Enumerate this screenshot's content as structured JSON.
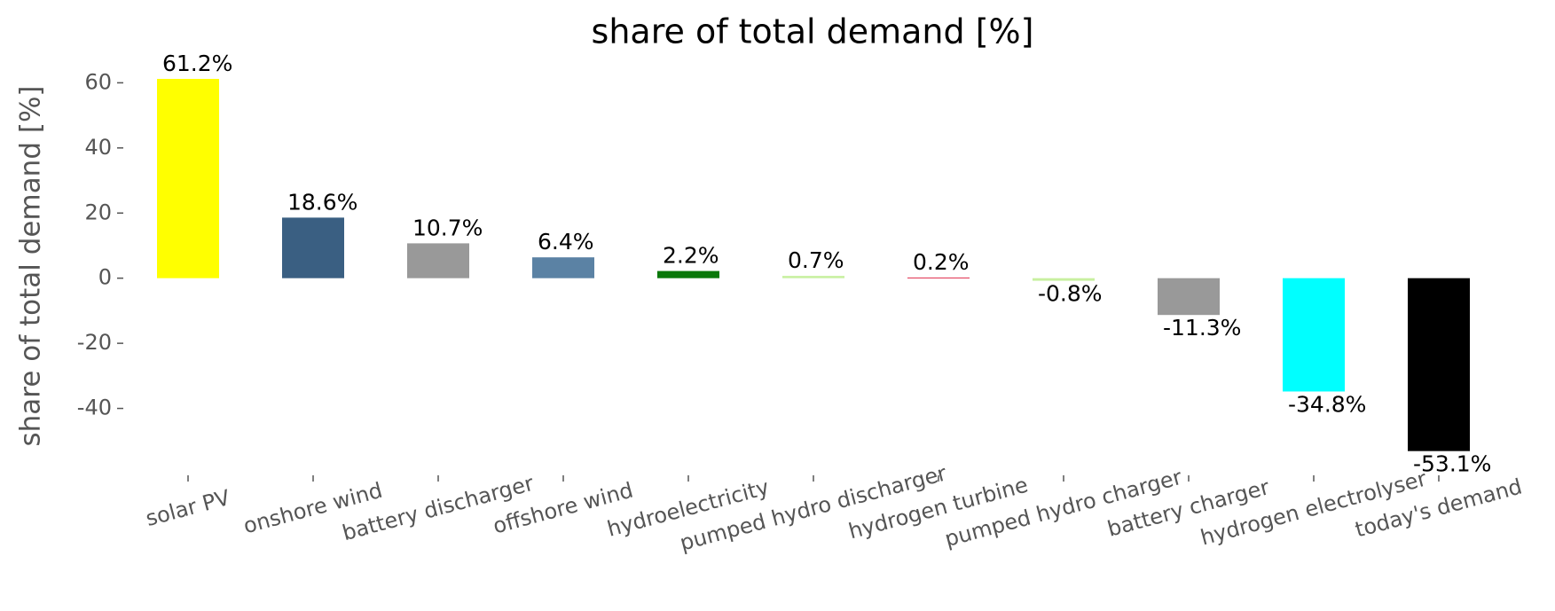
{
  "chart_data": {
    "type": "bar",
    "title": "share of total demand [%]",
    "y_label": "share of total demand [%]",
    "categories": [
      "solar PV",
      "onshore wind",
      "battery discharger",
      "offshore wind",
      "hydroelectricity",
      "pumped hydro discharger",
      "hydrogen turbine",
      "pumped hydro charger",
      "battery charger",
      "hydrogen electrolyser",
      "today's demand"
    ],
    "values": [
      61.2,
      18.6,
      10.7,
      6.4,
      2.2,
      0.7,
      0.2,
      -0.8,
      -11.3,
      -34.8,
      -53.1
    ],
    "value_labels": [
      "61.2%",
      "18.6%",
      "10.7%",
      "6.4%",
      "2.2%",
      "0.7%",
      "0.2%",
      "-0.8%",
      "-11.3%",
      "-34.8%",
      "-53.1%"
    ],
    "colors": [
      "#ffff00",
      "#3a5f82",
      "#999999",
      "#5b82a4",
      "#0a780a",
      "#c8f0a0",
      "#e0304e",
      "#c8f0a0",
      "#999999",
      "#00ffff",
      "#000000"
    ],
    "ylim": [
      -60,
      68
    ],
    "yticks": [
      -40,
      -20,
      0,
      20,
      40,
      60
    ],
    "grid": false
  }
}
